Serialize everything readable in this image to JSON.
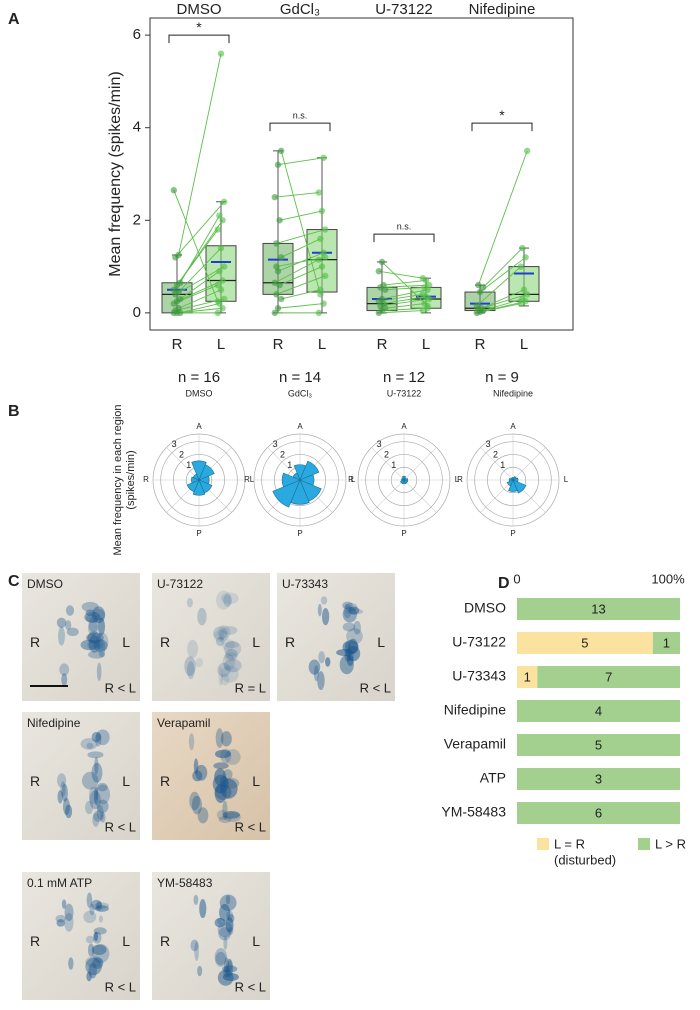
{
  "panels": [
    "A",
    "B",
    "C",
    "D"
  ],
  "chart_data": [
    {
      "type": "box",
      "ylabel": "Mean frequency (spikes/min)",
      "ylim": [
        -0.37,
        6.37
      ],
      "yticks": [
        0,
        2,
        4,
        6
      ],
      "groups": [
        {
          "name": "DMSO",
          "n_label": "n = 16",
          "significance": "*",
          "bracket": 6.0,
          "categories": [
            "R",
            "L"
          ],
          "boxes": [
            {
              "whislo": 0,
              "q1": 0,
              "med": 0.4,
              "q3": 0.65,
              "whishi": 1.25,
              "mean": 0.5
            },
            {
              "whislo": 0,
              "q1": 0.25,
              "med": 0.7,
              "q3": 1.45,
              "whishi": 2.4,
              "mean": 1.1
            }
          ],
          "points": {
            "R": [
              0,
              0,
              0,
              0.05,
              0.1,
              0.2,
              0.25,
              0.3,
              0.4,
              0.45,
              0.5,
              0.6,
              0.65,
              1.2,
              1.25,
              2.65
            ],
            "L": [
              0,
              0.1,
              0.2,
              0.3,
              0.5,
              0.6,
              0.7,
              0.9,
              1.0,
              1.4,
              1.8,
              2.0,
              2.1,
              2.4,
              5.6,
              0.25
            ]
          }
        },
        {
          "name": "GdCl₃",
          "n_label": "n = 14",
          "significance": "n.s.",
          "bracket": 4.1,
          "categories": [
            "R",
            "L"
          ],
          "boxes": [
            {
              "whislo": 0,
              "q1": 0.4,
              "med": 0.65,
              "q3": 1.5,
              "whishi": 3.5,
              "mean": 1.15
            },
            {
              "whislo": 0,
              "q1": 0.45,
              "med": 1.15,
              "q3": 1.8,
              "whishi": 3.35,
              "mean": 1.3
            }
          ],
          "points": {
            "R": [
              0,
              0.1,
              0.3,
              0.4,
              0.6,
              0.65,
              0.9,
              1.2,
              1.5,
              2.0,
              2.5,
              3.2,
              3.5,
              1.0
            ],
            "L": [
              0,
              0.2,
              0.5,
              0.8,
              1.0,
              1.15,
              1.3,
              1.6,
              1.8,
              2.2,
              2.6,
              3.35,
              0.4,
              1.2
            ]
          }
        },
        {
          "name": "U-73122",
          "n_label": "n = 12",
          "significance": "n.s.",
          "bracket": 1.7,
          "categories": [
            "R",
            "L"
          ],
          "boxes": [
            {
              "whislo": 0,
              "q1": 0.05,
              "med": 0.2,
              "q3": 0.55,
              "whishi": 1.1,
              "mean": 0.3
            },
            {
              "whislo": 0,
              "q1": 0.1,
              "med": 0.3,
              "q3": 0.55,
              "whishi": 0.75,
              "mean": 0.35
            }
          ],
          "points": {
            "R": [
              0,
              0.05,
              0.1,
              0.15,
              0.2,
              0.25,
              0.3,
              0.5,
              0.55,
              0.6,
              0.9,
              1.1
            ],
            "L": [
              0.05,
              0.1,
              0.2,
              0.3,
              0.35,
              0.4,
              0.5,
              0.55,
              0.6,
              0.7,
              0.75,
              0.15
            ]
          }
        },
        {
          "name": "Nifedipine",
          "n_label": "n = 9",
          "significance": "*",
          "bracket": 4.1,
          "categories": [
            "R",
            "L"
          ],
          "boxes": [
            {
              "whislo": 0,
              "q1": 0.05,
              "med": 0.1,
              "q3": 0.45,
              "whishi": 0.6,
              "mean": 0.2
            },
            {
              "whislo": 0.15,
              "q1": 0.25,
              "med": 0.4,
              "q3": 1.0,
              "whishi": 1.4,
              "mean": 0.85
            }
          ],
          "points": {
            "R": [
              0,
              0.02,
              0.05,
              0.08,
              0.1,
              0.15,
              0.45,
              0.55,
              0.6
            ],
            "L": [
              0.2,
              0.25,
              0.3,
              0.4,
              0.5,
              1.0,
              1.2,
              1.4,
              3.5
            ]
          }
        }
      ]
    },
    {
      "type": "polar",
      "ylabel": [
        "Mean frequency in each region",
        "(spikes/min)"
      ],
      "rlim": [
        0,
        3.6
      ],
      "rticks": [
        1,
        2,
        3
      ],
      "directions": [
        "A",
        "L",
        "P",
        "R"
      ],
      "color": "#29a9e0",
      "panels": [
        {
          "title": "DMSO",
          "values": [
            1.5,
            1.3,
            0.8,
            1.1,
            1.2,
            1.0,
            0.6,
            0.5
          ]
        },
        {
          "title": "GdCl₃",
          "values": [
            1.2,
            1.6,
            1.1,
            1.8,
            1.9,
            2.3,
            1.4,
            0.6
          ]
        },
        {
          "title": "U-73122",
          "values": [
            0.3,
            0.2,
            0.3,
            0.3,
            0.3,
            0.3,
            0.2,
            0.2
          ]
        },
        {
          "title": "Nifedipine",
          "values": [
            0.2,
            0.3,
            0.4,
            1.1,
            0.9,
            0.5,
            0.3,
            0.2
          ]
        }
      ]
    },
    {
      "type": "stacked_barh",
      "xlim": [
        0,
        100
      ],
      "xticks": [
        0,
        {
          "value": 100,
          "label": "100%"
        }
      ],
      "categories": [
        "DMSO",
        "U-73122",
        "U-73343",
        "Nifedipine",
        "Verapamil",
        "ATP",
        "YM-58483"
      ],
      "series": [
        {
          "name": "L = R",
          "color": "#fbe39f",
          "values": [
            0,
            5,
            1,
            0,
            0,
            0,
            0
          ]
        },
        {
          "name": "L > R",
          "color": "#a3d08e",
          "values": [
            13,
            1,
            7,
            4,
            5,
            3,
            6
          ]
        }
      ],
      "legend_note": "(disturbed)"
    }
  ],
  "images": [
    {
      "label": "DMSO",
      "left": "R",
      "right": "L",
      "result": "R < L"
    },
    {
      "label": "U-73122",
      "left": "R",
      "right": "L",
      "result": "R = L"
    },
    {
      "label": "U-73343",
      "left": "R",
      "right": "L",
      "result": "R < L"
    },
    {
      "label": "Nifedipine",
      "left": "R",
      "right": "L",
      "result": "R < L"
    },
    {
      "label": "Verapamil",
      "left": "R",
      "right": "L",
      "result": "R < L"
    },
    {
      "label": "0.1 mM ATP",
      "left": "R",
      "right": "L",
      "result": "R < L"
    },
    {
      "label": "YM-58483",
      "left": "R",
      "right": "L",
      "result": "R < L"
    }
  ]
}
